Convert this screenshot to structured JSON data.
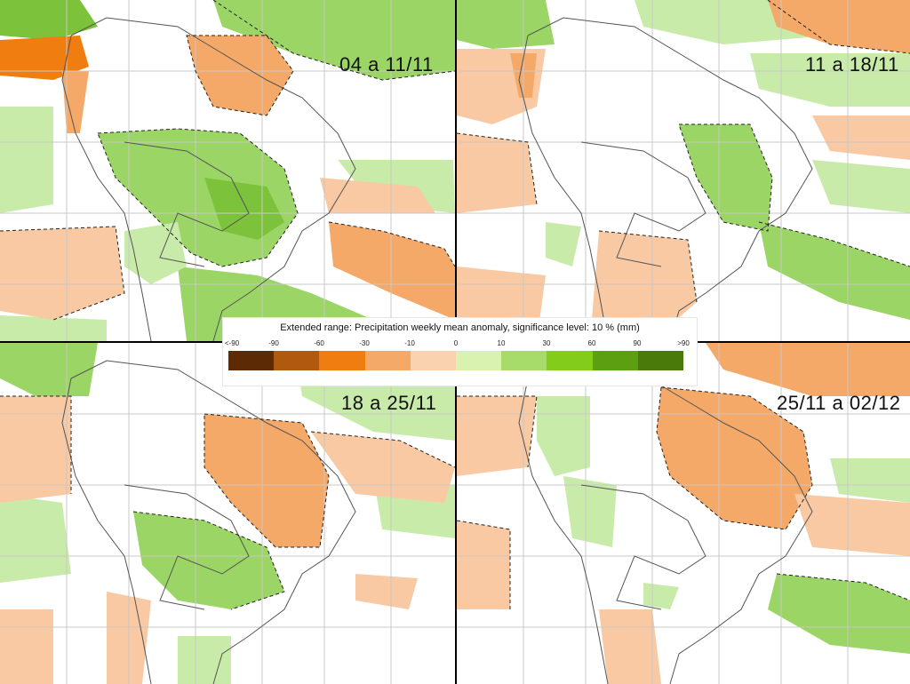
{
  "legend": {
    "title": "Extended range: Precipitation weekly mean anomaly, significance level: 10 % (mm)",
    "ticks": [
      "<-90",
      "-90",
      "-60",
      "-30",
      "-10",
      "0",
      "10",
      "30",
      "60",
      "90",
      ">90"
    ],
    "colors": [
      "#5c2a05",
      "#b05a10",
      "#f07d10",
      "#f4a968",
      "#fbd2b0",
      "#d9f2b0",
      "#a8dc6a",
      "#84cc1a",
      "#5aa010",
      "#4a7a0a"
    ]
  },
  "panels": [
    {
      "period": "04 a 11/11"
    },
    {
      "period": "11 a 18/11"
    },
    {
      "period": "18 a 25/11"
    },
    {
      "period": "25/11 a 02/12"
    }
  ],
  "colors": {
    "grid": "#c8c8c8",
    "border": "#555555",
    "contour": "#222222",
    "wet_light": "#c9ebaa",
    "wet": "#9bd565",
    "wet_strong": "#7cc23a",
    "dry_light": "#f8c9a2",
    "dry": "#f4a968",
    "dry_strong": "#f07d10"
  }
}
